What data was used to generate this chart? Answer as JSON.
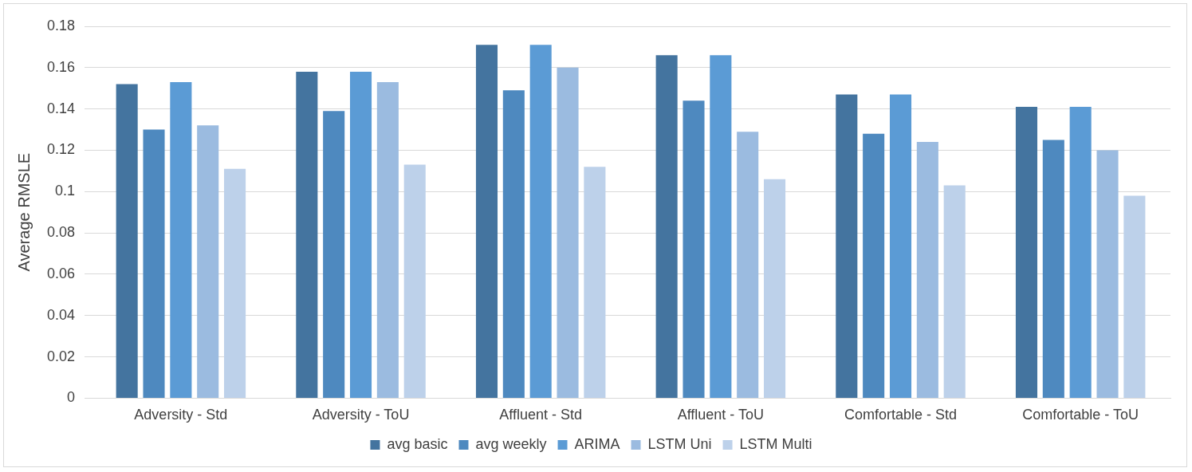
{
  "chart_data": {
    "type": "bar",
    "ylabel": "Average RMSLE",
    "categories": [
      "Adversity - Std",
      "Adversity - ToU",
      "Affluent - Std",
      "Affluent - ToU",
      "Comfortable - Std",
      "Comfortable - ToU"
    ],
    "series": [
      {
        "name": "avg basic",
        "color": "#44749f",
        "values": [
          0.152,
          0.158,
          0.171,
          0.166,
          0.147,
          0.141
        ]
      },
      {
        "name": "avg weekly",
        "color": "#4e89bf",
        "values": [
          0.13,
          0.139,
          0.149,
          0.144,
          0.128,
          0.125
        ]
      },
      {
        "name": "ARIMA",
        "color": "#5b9bd5",
        "values": [
          0.153,
          0.158,
          0.171,
          0.166,
          0.147,
          0.141
        ]
      },
      {
        "name": "LSTM Uni",
        "color": "#9bbbe0",
        "values": [
          0.132,
          0.153,
          0.16,
          0.129,
          0.124,
          0.12
        ]
      },
      {
        "name": "LSTM Multi",
        "color": "#bdd1ea",
        "values": [
          0.111,
          0.113,
          0.112,
          0.106,
          0.103,
          0.098
        ]
      }
    ],
    "ylim": [
      0,
      0.18
    ],
    "yticks": [
      0,
      0.02,
      0.04,
      0.06,
      0.08,
      0.1,
      0.12,
      0.14,
      0.16,
      0.18
    ],
    "grid": "y",
    "legend": "bottom"
  }
}
